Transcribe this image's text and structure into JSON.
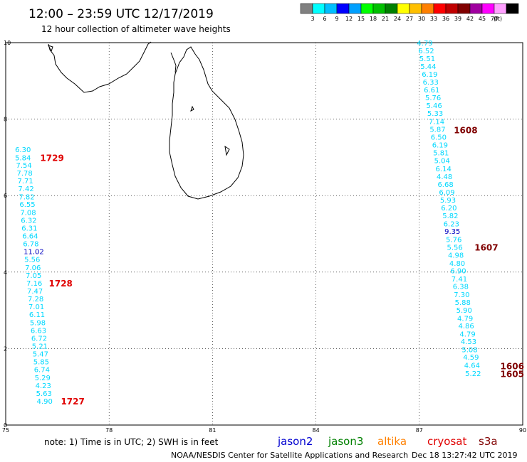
{
  "header": {
    "title": "12:00 – 23:59 UTC 12/17/2019",
    "subtitle": "12 hour collection of altimeter wave heights"
  },
  "scale": {
    "labels": [
      "3",
      "6",
      "9",
      "12",
      "15",
      "18",
      "21",
      "24",
      "27",
      "30",
      "33",
      "36",
      "39",
      "42",
      "45",
      "70",
      "(ft)"
    ],
    "colors": [
      "#808080",
      "#00ffff",
      "#00bfff",
      "#0000ff",
      "#00a0ff",
      "#00ff00",
      "#00c000",
      "#008000",
      "#ffff00",
      "#ffc000",
      "#ff8000",
      "#ff0000",
      "#c00000",
      "#800000",
      "#a000a0",
      "#ff00ff",
      "#ffa0ff",
      "#000000"
    ]
  },
  "axes": {
    "x_ticks": [
      "75",
      "78",
      "81",
      "84",
      "87",
      "90"
    ],
    "y_ticks": [
      "0",
      "2",
      "4",
      "6",
      "8",
      "10"
    ]
  },
  "map": {
    "xlim": [
      75,
      90
    ],
    "ylim": [
      0,
      10
    ],
    "coastline": "Sri Lanka / southern India",
    "grid": "dotted"
  },
  "tracks": [
    {
      "id": "left",
      "color": "#00d8ff",
      "points": [
        {
          "v": "6.30",
          "lon": 75.27,
          "lat": 7.21
        },
        {
          "v": "5.84",
          "lon": 75.27,
          "lat": 7.0
        },
        {
          "v": "7.54",
          "lon": 75.3,
          "lat": 6.8
        },
        {
          "v": "7.78",
          "lon": 75.32,
          "lat": 6.6
        },
        {
          "v": "7.71",
          "lon": 75.34,
          "lat": 6.39
        },
        {
          "v": "7.42",
          "lon": 75.36,
          "lat": 6.19
        },
        {
          "v": "7.82",
          "lon": 75.38,
          "lat": 5.98
        },
        {
          "v": "6.55",
          "lon": 75.4,
          "lat": 5.78
        },
        {
          "v": "7.08",
          "lon": 75.42,
          "lat": 5.57
        },
        {
          "v": "6.32",
          "lon": 75.44,
          "lat": 5.36
        },
        {
          "v": "6.31",
          "lon": 75.46,
          "lat": 5.16
        },
        {
          "v": "6.64",
          "lon": 75.48,
          "lat": 4.95
        },
        {
          "v": "6.78",
          "lon": 75.5,
          "lat": 4.75
        },
        {
          "v": "11.02",
          "lon": 75.52,
          "lat": 4.54,
          "color": "#0000c0"
        },
        {
          "v": "5.56",
          "lon": 75.54,
          "lat": 4.34
        },
        {
          "v": "7.06",
          "lon": 75.56,
          "lat": 4.13
        },
        {
          "v": "7.05",
          "lon": 75.58,
          "lat": 3.92
        },
        {
          "v": "7.16",
          "lon": 75.6,
          "lat": 3.72
        },
        {
          "v": "7.47",
          "lon": 75.62,
          "lat": 3.51
        },
        {
          "v": "7.28",
          "lon": 75.64,
          "lat": 3.31
        },
        {
          "v": "7.01",
          "lon": 75.66,
          "lat": 3.1
        },
        {
          "v": "6.11",
          "lon": 75.68,
          "lat": 2.9
        },
        {
          "v": "5.98",
          "lon": 75.7,
          "lat": 2.69
        },
        {
          "v": "6.63",
          "lon": 75.72,
          "lat": 2.48
        },
        {
          "v": "6.72",
          "lon": 75.74,
          "lat": 2.28
        },
        {
          "v": "5.21",
          "lon": 75.76,
          "lat": 2.07
        },
        {
          "v": "5.47",
          "lon": 75.78,
          "lat": 1.87
        },
        {
          "v": "5.85",
          "lon": 75.8,
          "lat": 1.66
        },
        {
          "v": "6.74",
          "lon": 75.82,
          "lat": 1.46
        },
        {
          "v": "5.29",
          "lon": 75.84,
          "lat": 1.25
        },
        {
          "v": "4.23",
          "lon": 75.86,
          "lat": 1.04
        },
        {
          "v": "5.63",
          "lon": 75.88,
          "lat": 0.84
        },
        {
          "v": "4.90",
          "lon": 75.9,
          "lat": 0.63
        }
      ],
      "times": [
        {
          "t": "1729",
          "lon": 76.0,
          "lat": 6.98,
          "color": "#e00000"
        },
        {
          "t": "1728",
          "lon": 76.25,
          "lat": 3.7,
          "color": "#e00000"
        },
        {
          "t": "1727",
          "lon": 76.6,
          "lat": 0.61,
          "color": "#e00000"
        }
      ]
    },
    {
      "id": "right",
      "color": "#00d8ff",
      "points": [
        {
          "v": "4.79",
          "lon": 86.93,
          "lat": 10.0
        },
        {
          "v": "6.52",
          "lon": 86.97,
          "lat": 9.8
        },
        {
          "v": "5.51",
          "lon": 87.0,
          "lat": 9.59
        },
        {
          "v": "5.44",
          "lon": 87.03,
          "lat": 9.39
        },
        {
          "v": "6.19",
          "lon": 87.07,
          "lat": 9.18
        },
        {
          "v": "6.33",
          "lon": 87.1,
          "lat": 8.98
        },
        {
          "v": "6.61",
          "lon": 87.13,
          "lat": 8.77
        },
        {
          "v": "5.76",
          "lon": 87.17,
          "lat": 8.57
        },
        {
          "v": "5.46",
          "lon": 87.2,
          "lat": 8.36
        },
        {
          "v": "5.33",
          "lon": 87.23,
          "lat": 8.16
        },
        {
          "v": "7.14",
          "lon": 87.27,
          "lat": 7.95
        },
        {
          "v": "5.87",
          "lon": 87.3,
          "lat": 7.74
        },
        {
          "v": "6.50",
          "lon": 87.33,
          "lat": 7.54
        },
        {
          "v": "6.19",
          "lon": 87.37,
          "lat": 7.33
        },
        {
          "v": "5.81",
          "lon": 87.4,
          "lat": 7.13
        },
        {
          "v": "5.04",
          "lon": 87.43,
          "lat": 6.92
        },
        {
          "v": "6.14",
          "lon": 87.47,
          "lat": 6.71
        },
        {
          "v": "4.48",
          "lon": 87.5,
          "lat": 6.51
        },
        {
          "v": "6.68",
          "lon": 87.53,
          "lat": 6.3
        },
        {
          "v": "6.09",
          "lon": 87.57,
          "lat": 6.1
        },
        {
          "v": "5.93",
          "lon": 87.6,
          "lat": 5.89
        },
        {
          "v": "6.20",
          "lon": 87.63,
          "lat": 5.69
        },
        {
          "v": "5.82",
          "lon": 87.67,
          "lat": 5.48
        },
        {
          "v": "6.23",
          "lon": 87.7,
          "lat": 5.27
        },
        {
          "v": "9.35",
          "lon": 87.73,
          "lat": 5.07,
          "color": "#0000c0"
        },
        {
          "v": "5.76",
          "lon": 87.77,
          "lat": 4.86
        },
        {
          "v": "5.56",
          "lon": 87.8,
          "lat": 4.66
        },
        {
          "v": "4.98",
          "lon": 87.83,
          "lat": 4.45
        },
        {
          "v": "4.80",
          "lon": 87.87,
          "lat": 4.24
        },
        {
          "v": "6.90",
          "lon": 87.9,
          "lat": 4.04
        },
        {
          "v": "7.41",
          "lon": 87.93,
          "lat": 3.83
        },
        {
          "v": "6.38",
          "lon": 87.97,
          "lat": 3.63
        },
        {
          "v": "7.30",
          "lon": 88.0,
          "lat": 3.42
        },
        {
          "v": "5.88",
          "lon": 88.03,
          "lat": 3.22
        },
        {
          "v": "5.90",
          "lon": 88.07,
          "lat": 3.01
        },
        {
          "v": "4.79",
          "lon": 88.1,
          "lat": 2.8
        },
        {
          "v": "4.86",
          "lon": 88.13,
          "lat": 2.6
        },
        {
          "v": "4.79",
          "lon": 88.17,
          "lat": 2.39
        },
        {
          "v": "4.53",
          "lon": 88.2,
          "lat": 2.19
        },
        {
          "v": "5.08",
          "lon": 88.23,
          "lat": 1.98
        },
        {
          "v": "4.59",
          "lon": 88.27,
          "lat": 1.78
        },
        {
          "v": "4.64",
          "lon": 88.3,
          "lat": 1.57
        },
        {
          "v": "5.22",
          "lon": 88.33,
          "lat": 1.36
        }
      ],
      "times": [
        {
          "t": "1608",
          "lon": 88.0,
          "lat": 7.7,
          "color": "#800000"
        },
        {
          "t": "1607",
          "lon": 88.6,
          "lat": 4.64,
          "color": "#800000"
        },
        {
          "t": "1606",
          "lon": 89.35,
          "lat": 1.53,
          "color": "#800000"
        },
        {
          "t": "1605",
          "lon": 89.35,
          "lat": 1.33,
          "color": "#800000"
        }
      ]
    }
  ],
  "footer": {
    "note": "note: 1) Time is in UTC; 2) SWH is in feet",
    "satellites": [
      {
        "name": "jason2",
        "color": "#0000d0"
      },
      {
        "name": "jason3",
        "color": "#008000"
      },
      {
        "name": "altika",
        "color": "#ff8000"
      },
      {
        "name": "cryosat",
        "color": "#e00000"
      },
      {
        "name": "s3a",
        "color": "#800000"
      }
    ],
    "credit": "NOAA/NESDIS Center for Satellite Applications and Research",
    "stamp": "Dec 18 13:27:42 UTC 2019"
  }
}
